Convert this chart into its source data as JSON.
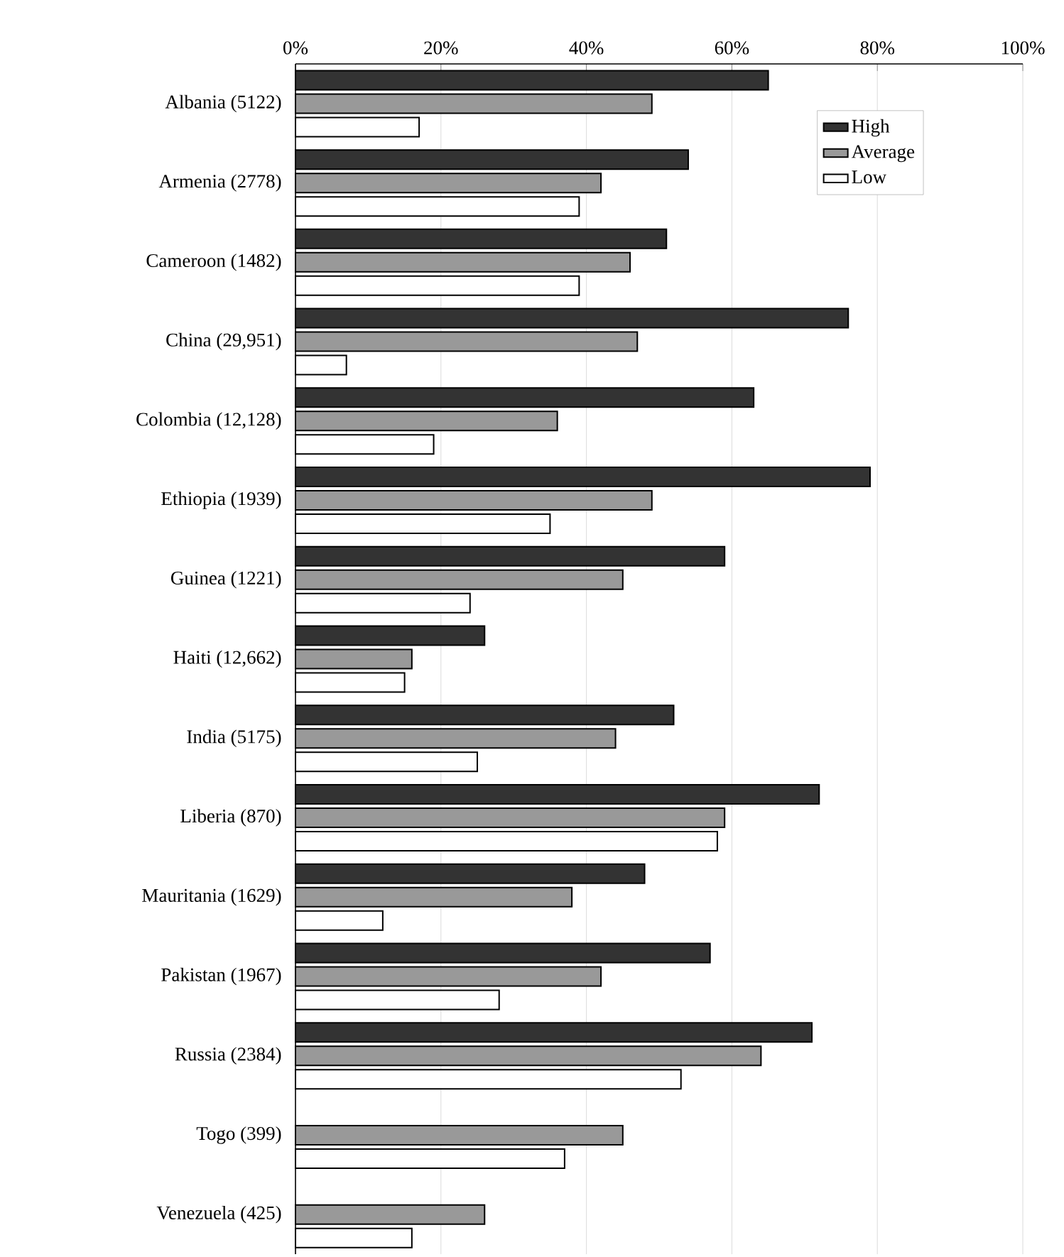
{
  "chart_data": {
    "type": "bar",
    "orientation": "horizontal",
    "categories": [
      "Albania (5122)",
      "Armenia (2778)",
      "Cameroon (1482)",
      "China (29,951)",
      "Colombia (12,128)",
      "Ethiopia (1939)",
      "Guinea (1221)",
      "Haiti (12,662)",
      "India (5175)",
      "Liberia (870)",
      "Mauritania (1629)",
      "Pakistan (1967)",
      "Russia (2384)",
      "Togo (399)",
      "Venezuela (425)"
    ],
    "series": [
      {
        "name": "High",
        "color": "#333333",
        "values": [
          65,
          54,
          51,
          76,
          63,
          79,
          59,
          26,
          52,
          72,
          48,
          57,
          71,
          null,
          null
        ]
      },
      {
        "name": "Average",
        "color": "#999999",
        "values": [
          49,
          42,
          46,
          47,
          36,
          49,
          45,
          16,
          44,
          59,
          38,
          42,
          64,
          45,
          26
        ]
      },
      {
        "name": "Low",
        "color": "#ffffff",
        "values": [
          17,
          39,
          39,
          7,
          19,
          35,
          24,
          15,
          25,
          58,
          12,
          28,
          53,
          37,
          16
        ]
      }
    ],
    "xlim": [
      0,
      100
    ],
    "xticks": [
      {
        "value": 0,
        "label": "0%"
      },
      {
        "value": 20,
        "label": "20%"
      },
      {
        "value": 40,
        "label": "40%"
      },
      {
        "value": 60,
        "label": "60%"
      },
      {
        "value": 80,
        "label": "80%"
      },
      {
        "value": 100,
        "label": "100%"
      }
    ],
    "grid": "x",
    "legend": "top right"
  }
}
